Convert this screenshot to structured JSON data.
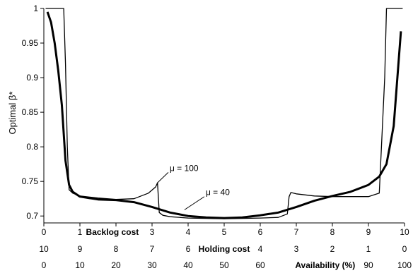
{
  "chart_data": {
    "type": "line",
    "title": "",
    "ylabel": "Optimal β*",
    "ylim": [
      0.69,
      1.0
    ],
    "yticks": [
      {
        "value": 0.7,
        "label": "0.7"
      },
      {
        "value": 0.75,
        "label": "0.75"
      },
      {
        "value": 0.8,
        "label": "0.8"
      },
      {
        "value": 0.85,
        "label": "0.85"
      },
      {
        "value": 0.9,
        "label": "0.9"
      },
      {
        "value": 0.95,
        "label": "0.95"
      },
      {
        "value": 1.0,
        "label": "1"
      }
    ],
    "xlim": [
      0,
      10
    ],
    "x_rows": [
      {
        "title": "Backlog cost",
        "title_at": 1.9,
        "ticks": [
          {
            "value": 0,
            "label": "0"
          },
          {
            "value": 1,
            "label": "1"
          },
          {
            "value": 3,
            "label": "3"
          },
          {
            "value": 4,
            "label": "4"
          },
          {
            "value": 5,
            "label": "5"
          },
          {
            "value": 6,
            "label": "6"
          },
          {
            "value": 7,
            "label": "7"
          },
          {
            "value": 8,
            "label": "8"
          },
          {
            "value": 9,
            "label": "9"
          },
          {
            "value": 10,
            "label": "10"
          }
        ]
      },
      {
        "title": "Holding cost",
        "title_at": 5.0,
        "ticks": [
          {
            "value": 0,
            "label": "10"
          },
          {
            "value": 1,
            "label": "9"
          },
          {
            "value": 2,
            "label": "8"
          },
          {
            "value": 3,
            "label": "7"
          },
          {
            "value": 4,
            "label": "6"
          },
          {
            "value": 6,
            "label": "4"
          },
          {
            "value": 7,
            "label": "3"
          },
          {
            "value": 8,
            "label": "2"
          },
          {
            "value": 9,
            "label": "1"
          },
          {
            "value": 10,
            "label": "0"
          }
        ]
      },
      {
        "title": "Availability (%)",
        "title_at": 7.8,
        "ticks": [
          {
            "value": 0,
            "label": "0"
          },
          {
            "value": 1,
            "label": "10"
          },
          {
            "value": 2,
            "label": "20"
          },
          {
            "value": 3,
            "label": "30"
          },
          {
            "value": 4,
            "label": "40"
          },
          {
            "value": 5,
            "label": "50"
          },
          {
            "value": 6,
            "label": "60"
          },
          {
            "value": 9,
            "label": "90"
          },
          {
            "value": 10,
            "label": "100"
          }
        ]
      }
    ],
    "series": [
      {
        "name": "μ = 100",
        "line_width": "thin",
        "x": [
          0.05,
          0.55,
          0.6,
          0.65,
          0.7,
          0.8,
          1.0,
          1.5,
          2.0,
          2.5,
          2.9,
          3.1,
          3.15,
          3.2,
          3.3,
          3.5,
          4.0,
          5.0,
          6.0,
          6.5,
          6.75,
          6.8,
          6.85,
          7.0,
          7.5,
          8.0,
          8.5,
          9.0,
          9.3,
          9.45,
          9.5,
          9.6,
          9.95
        ],
        "y": [
          1.0,
          1.0,
          0.92,
          0.8,
          0.738,
          0.733,
          0.729,
          0.726,
          0.724,
          0.725,
          0.733,
          0.742,
          0.748,
          0.705,
          0.701,
          0.699,
          0.697,
          0.696,
          0.697,
          0.698,
          0.703,
          0.728,
          0.734,
          0.732,
          0.729,
          0.728,
          0.728,
          0.728,
          0.733,
          0.9,
          1.0,
          1.0,
          1.0
        ]
      },
      {
        "name": "μ = 40",
        "line_width": "thick",
        "x": [
          0.1,
          0.2,
          0.3,
          0.4,
          0.5,
          0.6,
          0.7,
          0.8,
          1.0,
          1.5,
          2.0,
          2.5,
          3.0,
          3.5,
          4.0,
          4.5,
          5.0,
          5.5,
          6.0,
          6.5,
          7.0,
          7.5,
          8.0,
          8.5,
          9.0,
          9.3,
          9.5,
          9.7,
          9.9
        ],
        "y": [
          0.995,
          0.98,
          0.95,
          0.91,
          0.86,
          0.78,
          0.745,
          0.735,
          0.728,
          0.724,
          0.723,
          0.72,
          0.713,
          0.705,
          0.7,
          0.698,
          0.697,
          0.698,
          0.701,
          0.705,
          0.713,
          0.722,
          0.729,
          0.735,
          0.745,
          0.757,
          0.775,
          0.83,
          0.967
        ]
      }
    ],
    "annotations": [
      {
        "text": "μ = 100",
        "target": [
          3.15,
          0.748
        ],
        "at": [
          3.45,
          0.763
        ]
      },
      {
        "text": "μ = 40",
        "target": [
          3.9,
          0.709
        ],
        "at": [
          4.45,
          0.728
        ]
      }
    ],
    "grid": false,
    "legend": "none"
  }
}
